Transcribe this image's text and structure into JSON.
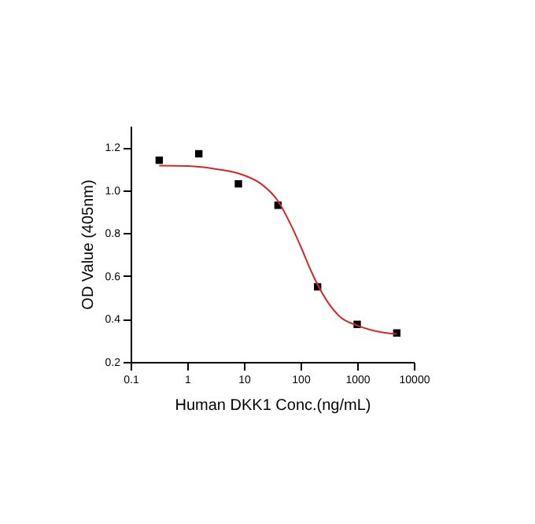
{
  "chart_data": {
    "type": "scatter",
    "xlabel": "Human DKK1 Conc.(ng/mL)",
    "ylabel": "OD Value (405nm)",
    "log": "x",
    "xlim": [
      0.1,
      10000
    ],
    "xticks": [
      0.1,
      1,
      10,
      100,
      1000,
      10000
    ],
    "ylim": [
      0.2,
      1.3
    ],
    "yticks": [
      0.2,
      0.4,
      0.6,
      0.8,
      {
        "value": 1,
        "label": "1.0"
      },
      1.2
    ],
    "grid": false,
    "marker": "square",
    "series": [
      {
        "color": "#000000",
        "x": [
          0.32,
          1.6,
          8,
          40,
          200,
          1000,
          5000
        ],
        "values": [
          1.14,
          1.17,
          1.03,
          0.93,
          0.55,
          0.375,
          0.335
        ]
      },
      {
        "type": "line",
        "color": "#d62728",
        "line_style": "solid",
        "marker": "none",
        "x": [
          0.32,
          1,
          3,
          10,
          20,
          40,
          70,
          100,
          150,
          200,
          300,
          500,
          1000,
          2000,
          5000
        ],
        "values": [
          1.115,
          1.113,
          1.1,
          1.07,
          1.03,
          0.95,
          0.83,
          0.74,
          0.63,
          0.56,
          0.48,
          0.41,
          0.37,
          0.345,
          0.33
        ]
      }
    ]
  }
}
